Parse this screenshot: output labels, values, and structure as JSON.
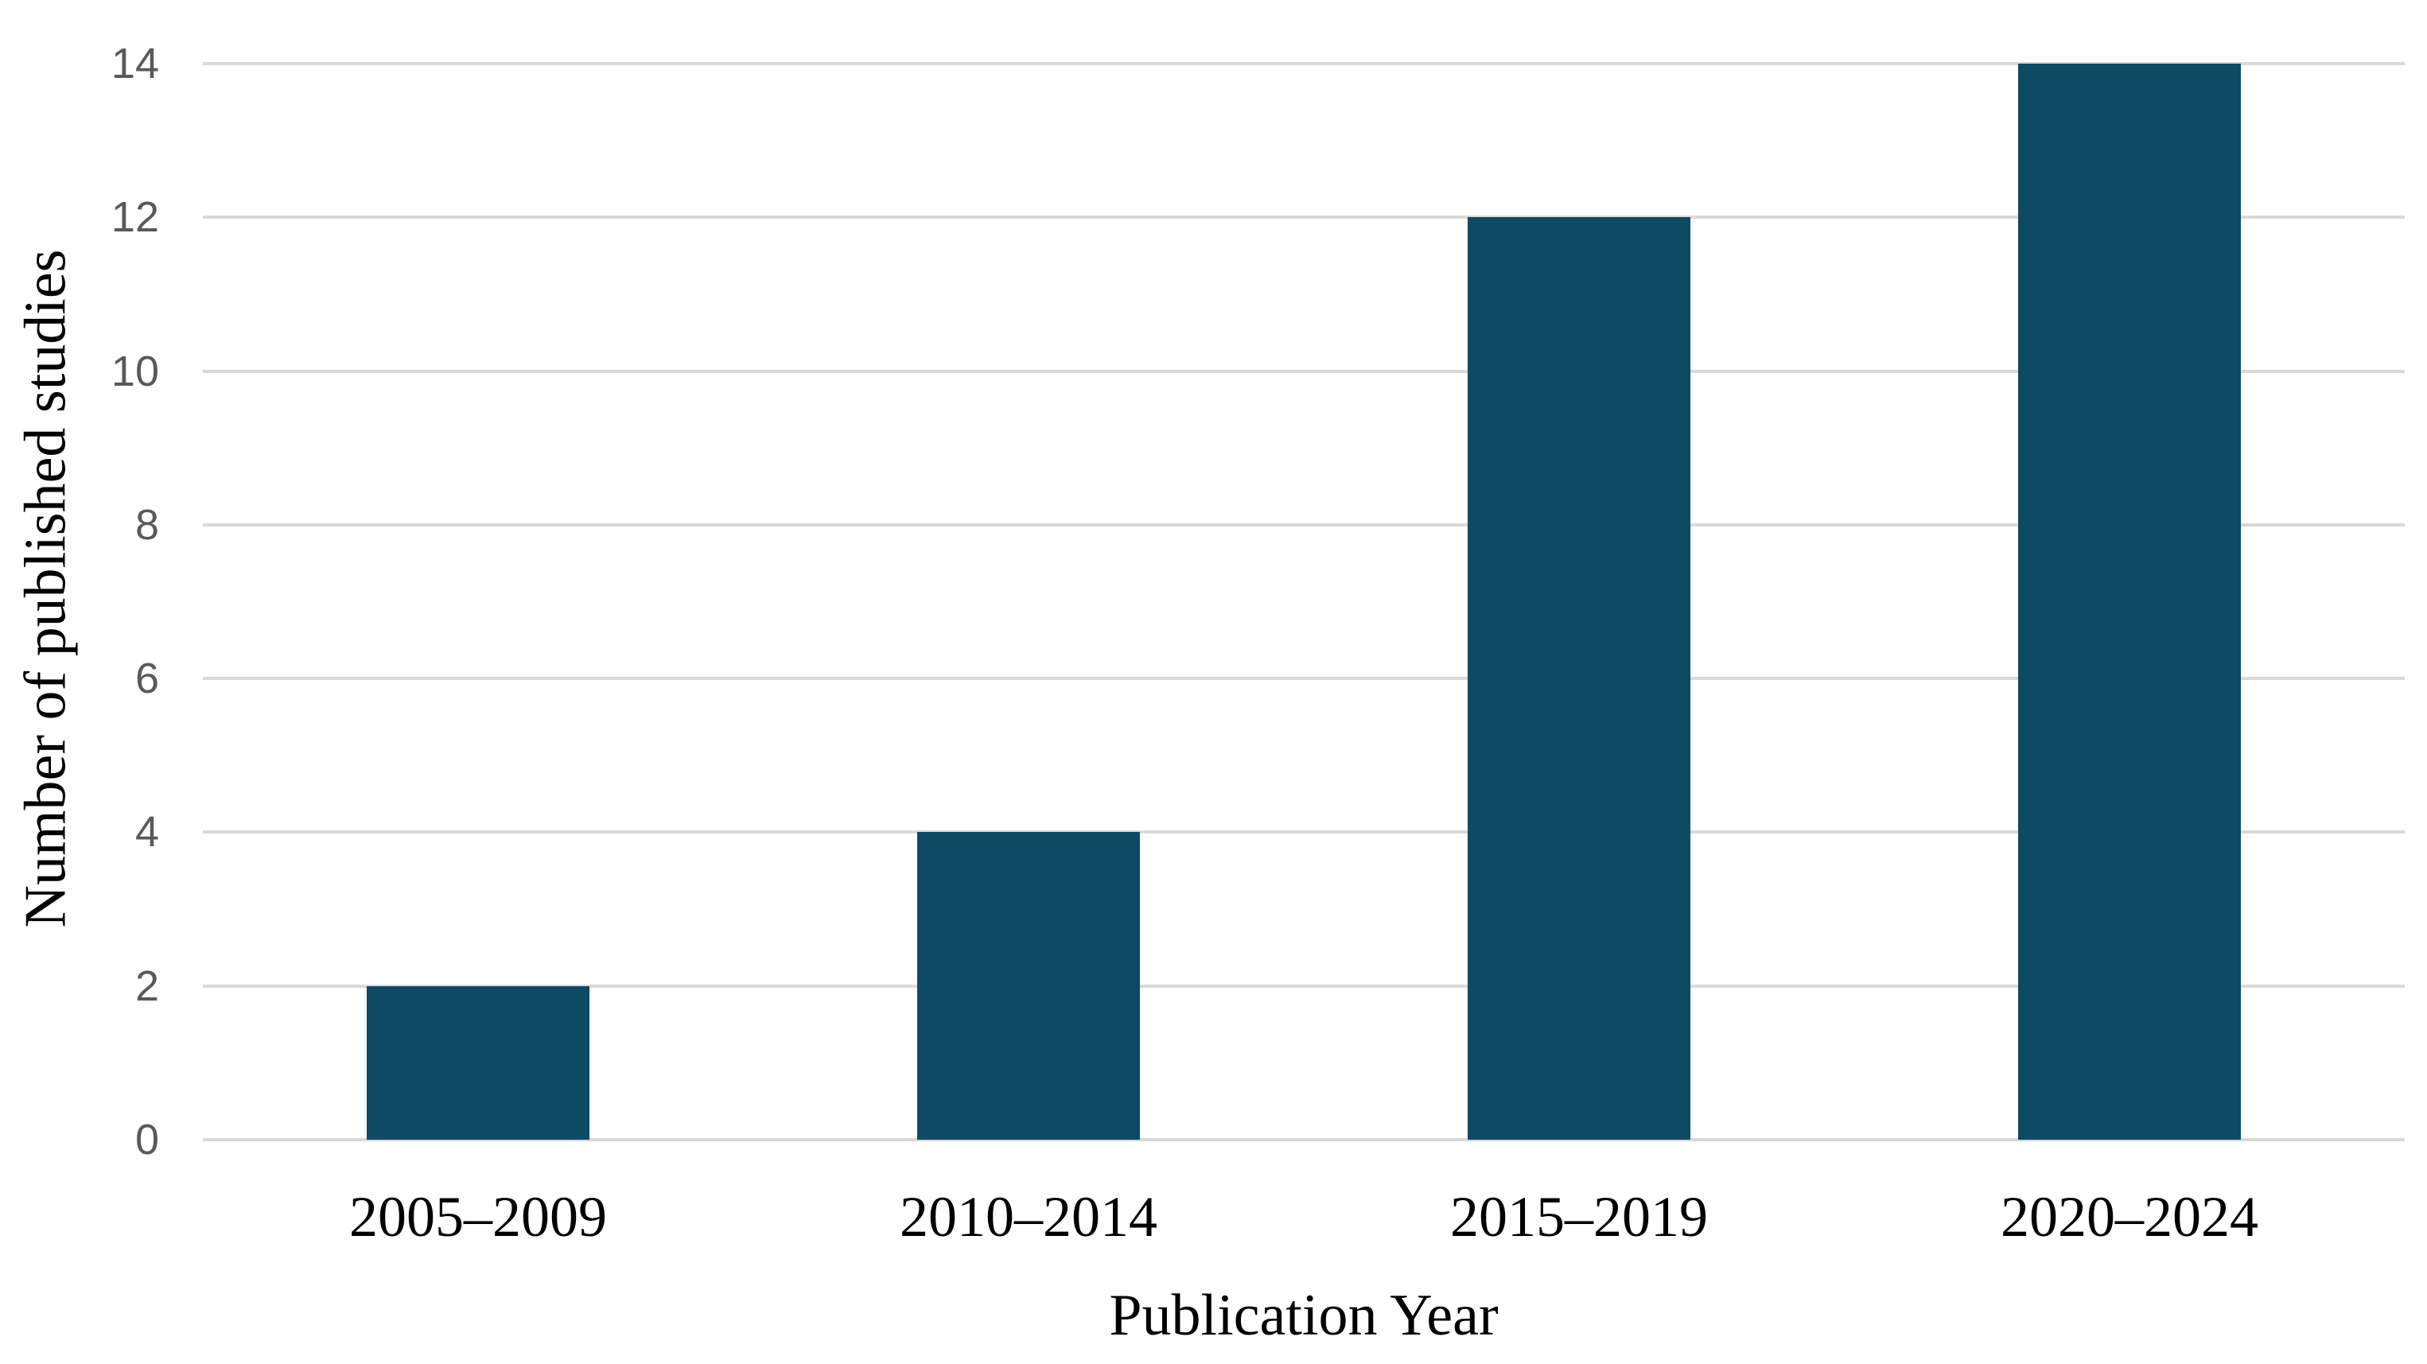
{
  "figure": {
    "background_color": "#ffffff"
  },
  "chart_data": {
    "type": "bar",
    "categories": [
      "2005–2009",
      "2010–2014",
      "2015–2019",
      "2020–2024"
    ],
    "values": [
      2,
      4,
      12,
      14
    ],
    "title": "",
    "xlabel": "Publication Year",
    "ylabel": "Number of published studies",
    "ylim": [
      0,
      14
    ],
    "yticks": [
      0,
      2,
      4,
      6,
      8,
      10,
      12,
      14
    ],
    "grid": true,
    "legend": false,
    "bar_color": "#0d4a63",
    "gridline_color": "#d9d9d9",
    "tick_label_color": "#595959",
    "axis_title_color": "#000000"
  }
}
